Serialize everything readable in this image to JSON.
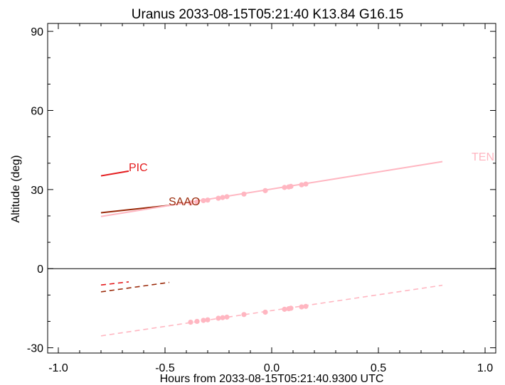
{
  "chart_data": {
    "type": "line",
    "title": "Uranus 2033-08-15T05:21:40  K13.84  G16.15",
    "xlabel": "Hours from 2033-08-15T05:21:40.9300 UTC",
    "ylabel": "Altitude (deg)",
    "xlim": [
      -1.05,
      1.05
    ],
    "ylim": [
      -32,
      93
    ],
    "xticks": [
      -1.0,
      -0.5,
      0.0,
      0.5,
      1.0
    ],
    "xtick_labels": [
      "-1.0",
      "-0.5",
      "0.0",
      "0.5",
      "1.0"
    ],
    "yticks": [
      -30,
      0,
      30,
      60,
      90
    ],
    "ytick_labels": [
      "-30",
      "0",
      "30",
      "60",
      "90"
    ],
    "zero_line": 0,
    "grid": false,
    "series": [
      {
        "name": "PIC",
        "color": "#e41a1c",
        "altitude": {
          "x": [
            -0.8,
            -0.67
          ],
          "y": [
            35.2,
            37.0
          ]
        },
        "below": {
          "x": [
            -0.8,
            -0.67
          ],
          "y": [
            -6.2,
            -5.0
          ]
        }
      },
      {
        "name": "SAAO",
        "color": "#9a2a0a",
        "altitude": {
          "x": [
            -0.8,
            -0.48
          ],
          "y": [
            21.2,
            24.0
          ]
        },
        "below": {
          "x": [
            -0.8,
            -0.48
          ],
          "y": [
            -8.8,
            -5.2
          ]
        }
      },
      {
        "name": "TEN",
        "color": "#ffb6c1",
        "altitude": {
          "x": [
            -0.8,
            0.8
          ],
          "y": [
            19.8,
            40.6
          ]
        },
        "below": {
          "x": [
            -0.8,
            0.8
          ],
          "y": [
            -25.5,
            -6.3
          ]
        },
        "points": {
          "x": [
            -0.38,
            -0.35,
            -0.32,
            -0.3,
            -0.25,
            -0.23,
            -0.21,
            -0.13,
            -0.03,
            0.06,
            0.08,
            0.09,
            0.14,
            0.16
          ],
          "y": [
            24.9,
            25.3,
            25.8,
            26.0,
            26.7,
            27.0,
            27.3,
            28.3,
            29.6,
            30.8,
            31.0,
            31.2,
            31.8,
            32.1
          ]
        },
        "points_below": {
          "x": [
            -0.38,
            -0.35,
            -0.32,
            -0.3,
            -0.25,
            -0.23,
            -0.21,
            -0.13,
            -0.03,
            0.06,
            0.08,
            0.09,
            0.14,
            0.16
          ],
          "y": [
            -20.3,
            -20.0,
            -19.6,
            -19.4,
            -18.8,
            -18.6,
            -18.4,
            -17.4,
            -16.5,
            -15.4,
            -15.2,
            -15.0,
            -14.5,
            -14.3
          ]
        }
      }
    ]
  },
  "labels": {
    "pic": "PIC",
    "saao": "SAAO",
    "ten": "TEN"
  }
}
